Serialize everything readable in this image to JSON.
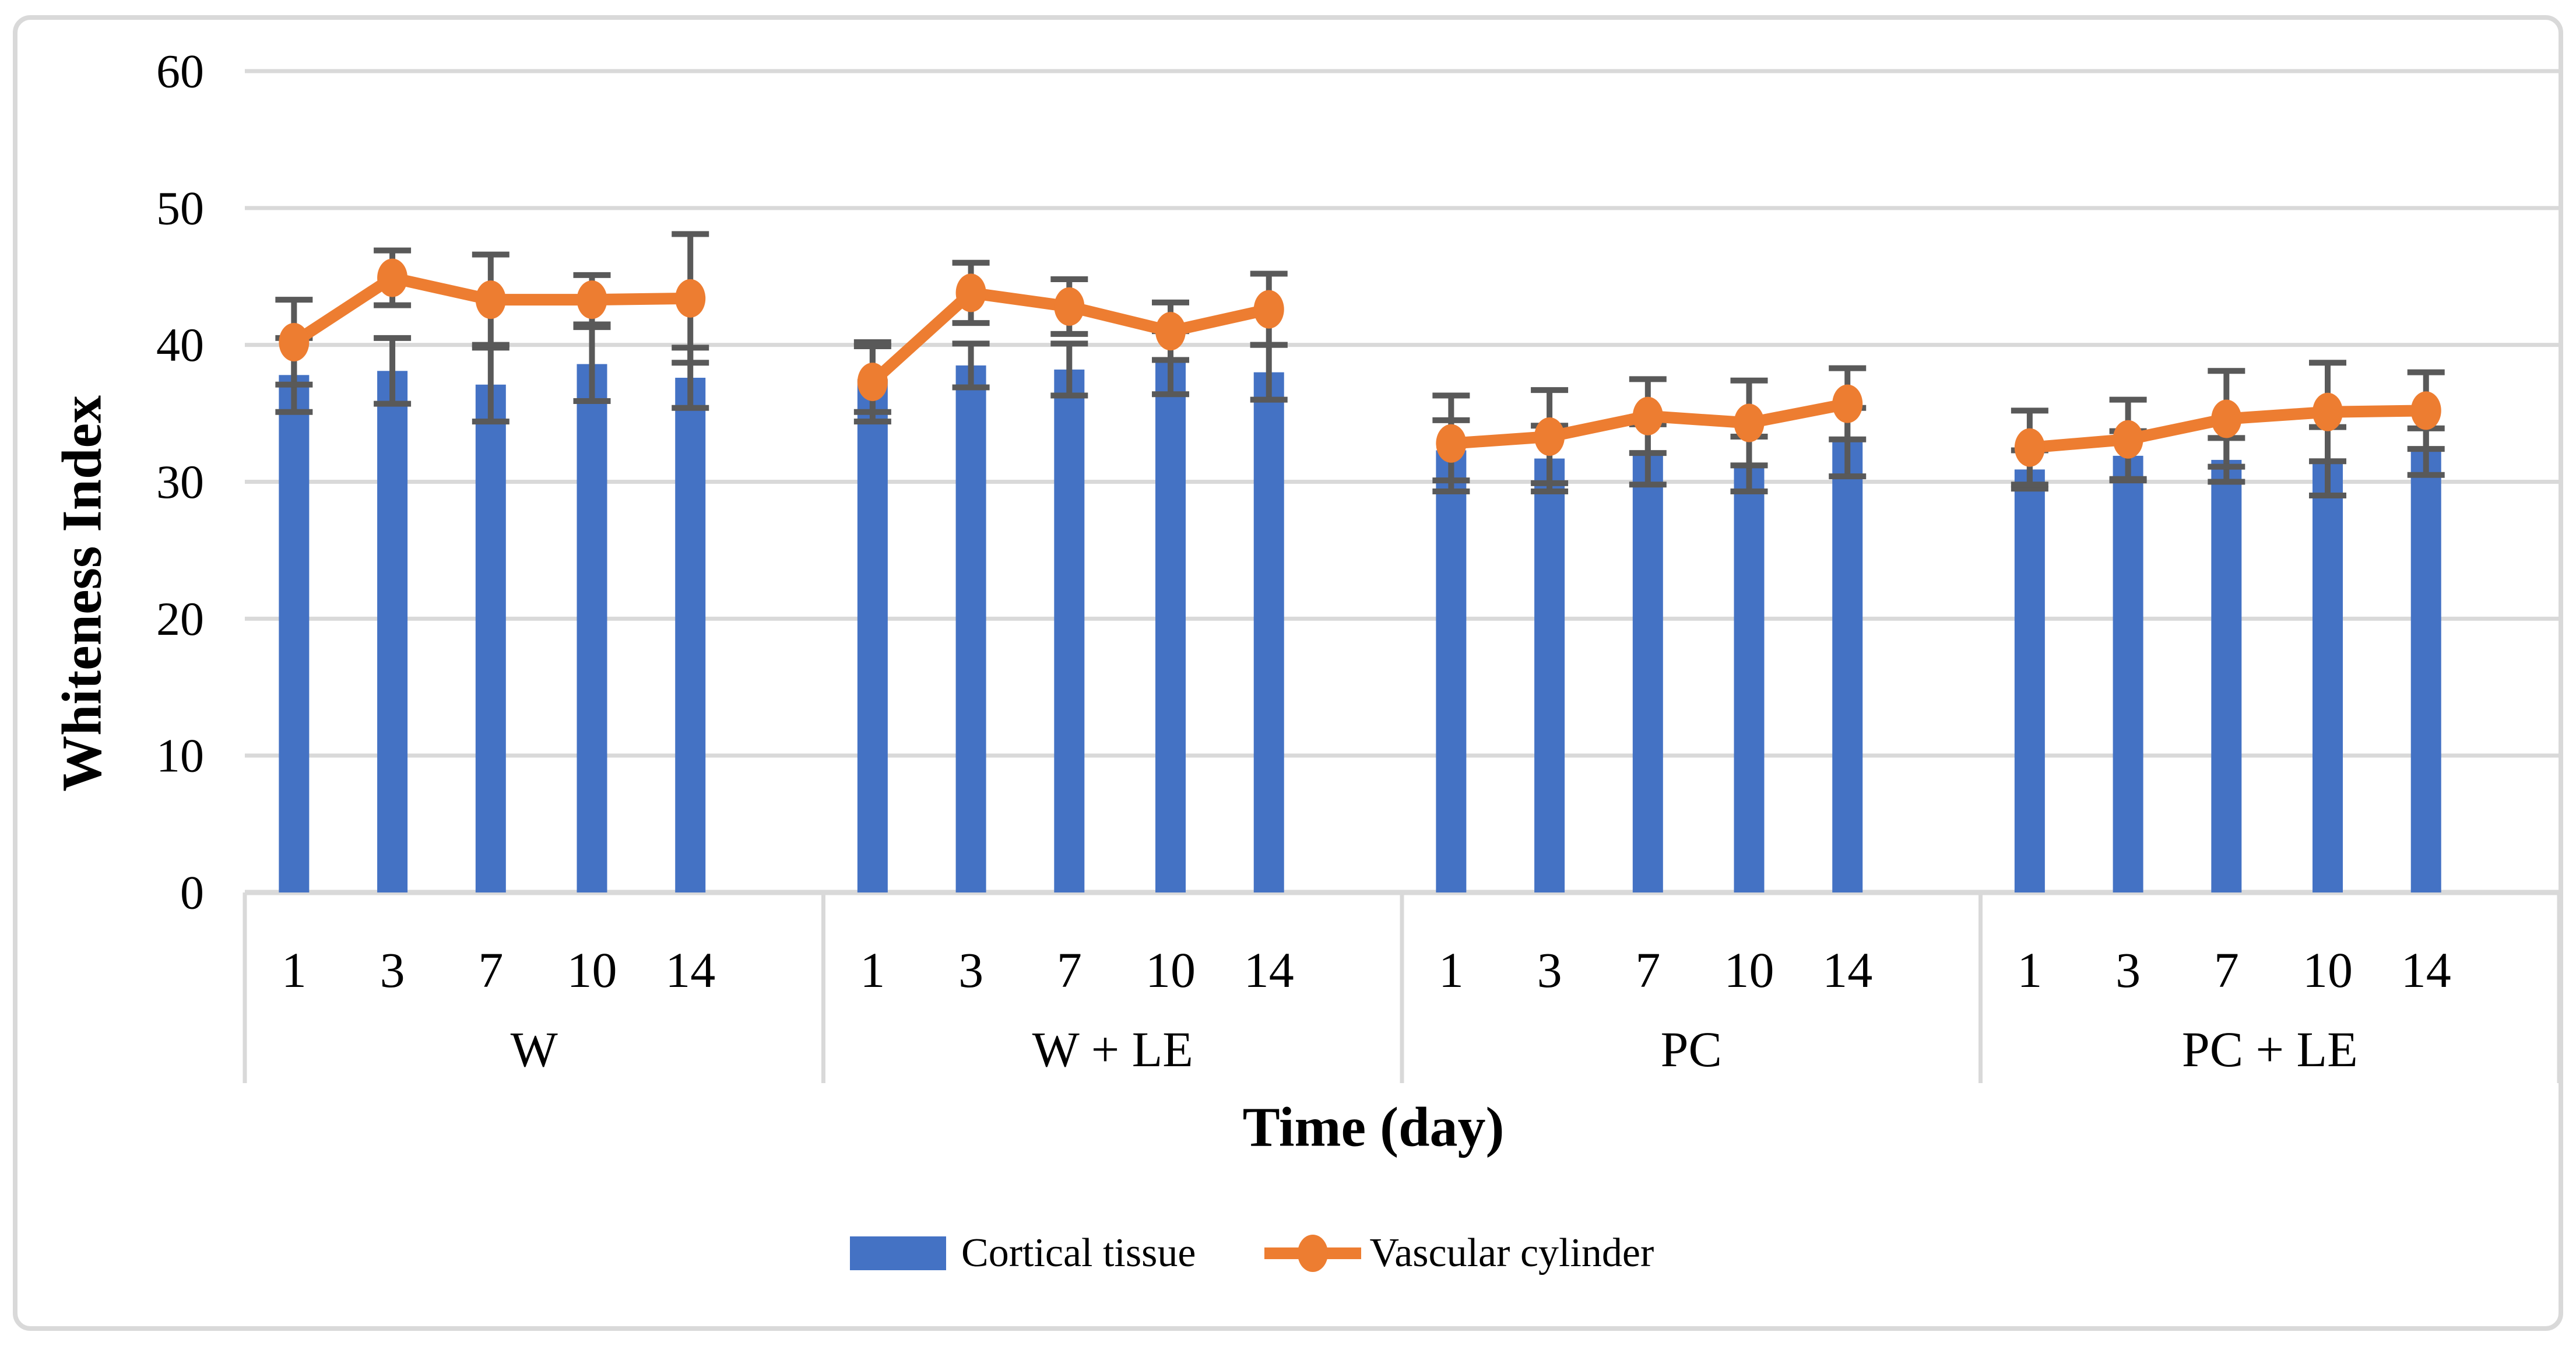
{
  "figure": {
    "background_color": "#FFFFFF",
    "border_color": "#D9D9D9"
  },
  "chart_data": {
    "type": "bar+line",
    "title": "",
    "xlabel": "Time (day)",
    "ylabel": "Whiteness Index",
    "ylim": [
      0,
      60
    ],
    "y_ticks": [
      0,
      10,
      20,
      30,
      40,
      50,
      60
    ],
    "grid": "horizontal, light gray",
    "legend_position": "bottom",
    "group_labels": [
      "W",
      "W + LE",
      "PC",
      "PC + LE"
    ],
    "day_labels": [
      "1",
      "3",
      "7",
      "10",
      "14"
    ],
    "colors": {
      "bar": "#4472C4",
      "line": "#ED7D31",
      "error_bar": "#595959",
      "gridline": "#D9D9D9",
      "text": "#000000"
    },
    "series": [
      {
        "name": "Cortical tissue",
        "type": "bar",
        "color": "#4472C4",
        "values": [
          [
            37.8,
            38.1,
            37.1,
            38.6,
            37.6
          ],
          [
            37.5,
            38.5,
            38.2,
            38.7,
            38.0
          ],
          [
            32.3,
            31.7,
            32.0,
            31.3,
            32.9
          ],
          [
            30.9,
            31.9,
            31.6,
            31.5,
            32.2
          ]
        ],
        "errors": [
          [
            2.7,
            2.4,
            2.7,
            2.7,
            2.2
          ],
          [
            2.4,
            1.6,
            1.9,
            2.3,
            2.0
          ],
          [
            2.2,
            2.4,
            2.2,
            2.0,
            2.5
          ],
          [
            1.4,
            1.8,
            1.6,
            2.5,
            1.7
          ]
        ]
      },
      {
        "name": "Vascular cylinder",
        "type": "line",
        "color": "#ED7D31",
        "values": [
          [
            40.2,
            44.9,
            43.3,
            43.3,
            43.4
          ],
          [
            37.3,
            43.8,
            42.8,
            41.0,
            42.6
          ],
          [
            32.8,
            33.3,
            34.8,
            34.3,
            35.7
          ],
          [
            32.5,
            33.1,
            34.6,
            35.1,
            35.2
          ]
        ],
        "errors": [
          [
            3.1,
            2.0,
            3.3,
            1.8,
            4.7
          ],
          [
            2.9,
            2.2,
            2.0,
            2.1,
            2.6
          ],
          [
            3.5,
            3.4,
            2.7,
            3.1,
            2.6
          ],
          [
            2.7,
            2.9,
            3.5,
            3.6,
            2.8
          ]
        ]
      }
    ],
    "legend_items": [
      {
        "label": "Cortical tissue",
        "marker": "blue-rectangle"
      },
      {
        "label": "Vascular cylinder",
        "marker": "orange-line-with-dot"
      }
    ]
  }
}
